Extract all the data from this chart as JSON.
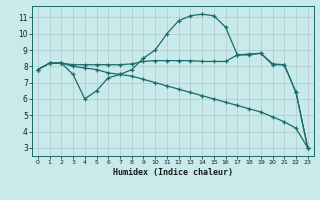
{
  "xlabel": "Humidex (Indice chaleur)",
  "bg_color": "#c8eaea",
  "grid_color": "#b0c8c8",
  "line_color": "#1a6b6b",
  "xlim": [
    -0.5,
    23.5
  ],
  "ylim": [
    2.5,
    11.7
  ],
  "xticks": [
    0,
    1,
    2,
    3,
    4,
    5,
    6,
    7,
    8,
    9,
    10,
    11,
    12,
    13,
    14,
    15,
    16,
    17,
    18,
    19,
    20,
    21,
    22,
    23
  ],
  "yticks": [
    3,
    4,
    5,
    6,
    7,
    8,
    9,
    10,
    11
  ],
  "line1_x": [
    0,
    1,
    2,
    3,
    4,
    5,
    6,
    7,
    8,
    9,
    10,
    11,
    12,
    13,
    14,
    15,
    16,
    17,
    18,
    19,
    20,
    21,
    22,
    23
  ],
  "line1_y": [
    7.8,
    8.2,
    8.2,
    7.5,
    6.0,
    6.5,
    7.3,
    7.5,
    7.8,
    8.5,
    9.0,
    10.0,
    10.8,
    11.1,
    11.2,
    11.1,
    10.4,
    8.7,
    8.7,
    8.8,
    8.1,
    8.1,
    6.4,
    3.0
  ],
  "line2_x": [
    0,
    1,
    2,
    3,
    4,
    5,
    6,
    7,
    8,
    9,
    10,
    11,
    12,
    13,
    14,
    15,
    16,
    17,
    18,
    19,
    20,
    21,
    22,
    23
  ],
  "line2_y": [
    7.8,
    8.2,
    8.2,
    8.1,
    8.1,
    8.1,
    8.1,
    8.1,
    8.15,
    8.3,
    8.35,
    8.35,
    8.35,
    8.35,
    8.3,
    8.3,
    8.3,
    8.7,
    8.75,
    8.8,
    8.15,
    8.1,
    6.4,
    3.0
  ],
  "line3_x": [
    0,
    1,
    2,
    3,
    4,
    5,
    6,
    7,
    8,
    9,
    10,
    11,
    12,
    13,
    14,
    15,
    16,
    17,
    18,
    19,
    20,
    21,
    22,
    23
  ],
  "line3_y": [
    7.8,
    8.2,
    8.2,
    8.0,
    7.9,
    7.8,
    7.6,
    7.5,
    7.4,
    7.2,
    7.0,
    6.8,
    6.6,
    6.4,
    6.2,
    6.0,
    5.8,
    5.6,
    5.4,
    5.2,
    4.9,
    4.6,
    4.2,
    3.0
  ]
}
